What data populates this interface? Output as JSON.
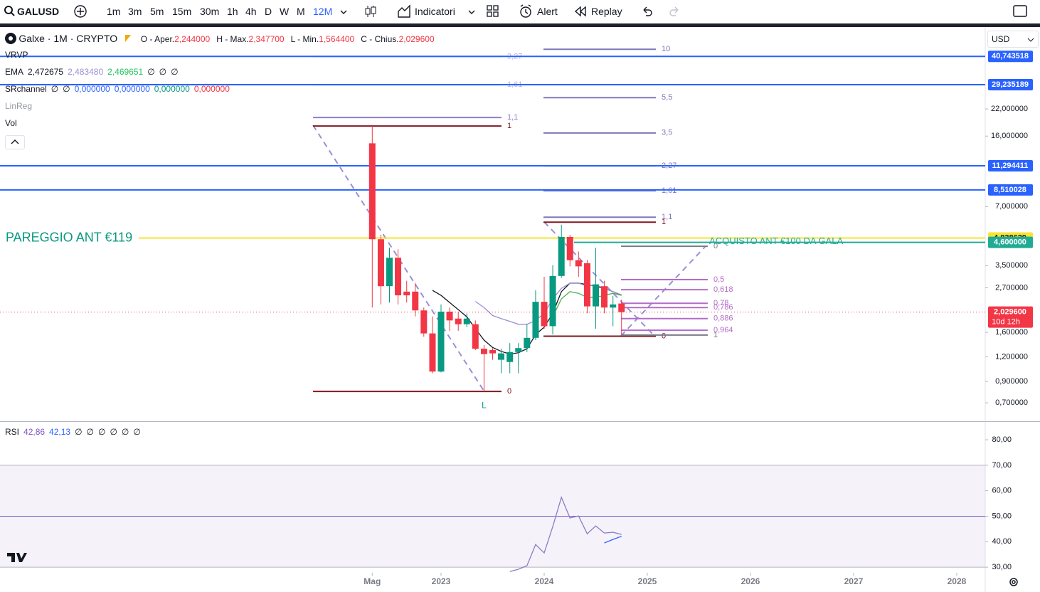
{
  "toolbar": {
    "symbol": "GALUSD",
    "intervals": [
      "1m",
      "3m",
      "5m",
      "15m",
      "30m",
      "1h",
      "4h",
      "D",
      "W",
      "M",
      "12M"
    ],
    "buttons": [
      "Indicatori",
      "Alert",
      "Replay"
    ]
  },
  "legend": {
    "title": "Galxe · 1M · CRYPTO",
    "ohlc": [
      {
        "label": "O - Aper.",
        "value": "2,244000"
      },
      {
        "label": "H - Max.",
        "value": "2,347700"
      },
      {
        "label": "L - Min.",
        "value": "1,564400"
      },
      {
        "label": "C - Chius.",
        "value": "2,029600"
      }
    ]
  },
  "indicators": [
    {
      "name": "VRVP",
      "values": [],
      "colors": []
    },
    {
      "name": "EMA",
      "values": [
        "2,472675",
        "2,483480",
        "2,469651",
        "∅",
        "∅",
        "∅"
      ],
      "colors": [
        "#131722",
        "#9c8fd6",
        "#22c55e",
        "#131722",
        "#131722",
        "#131722"
      ]
    },
    {
      "name": "SRchannel",
      "values": [
        "∅",
        "∅",
        "0,000000",
        "0,000000",
        "0,000000",
        "0,000000"
      ],
      "colors": [
        "#131722",
        "#131722",
        "#2962ff",
        "#2962ff",
        "#089981",
        "#f23645"
      ]
    },
    {
      "name": "LinReg",
      "values": [],
      "colors": []
    },
    {
      "name": "Vol",
      "values": [],
      "colors": []
    }
  ],
  "rsi_legend": {
    "name": "RSI",
    "values": [
      "42,86",
      "42,13",
      "∅",
      "∅",
      "∅",
      "∅",
      "∅",
      "∅"
    ],
    "colors": [
      "#7e57c2",
      "#2962ff",
      "#131722",
      "#131722",
      "#131722",
      "#131722",
      "#131722",
      "#131722"
    ]
  },
  "currency": "USD",
  "chart_data": [
    {
      "type": "candlestick",
      "log_scale": true,
      "grid": false,
      "up_color": "#089981",
      "down_color": "#f23645",
      "x": [
        2022.333,
        2022.417,
        2022.5,
        2022.583,
        2022.667,
        2022.75,
        2022.833,
        2022.917,
        2023,
        2023.083,
        2023.167,
        2023.25,
        2023.333,
        2023.417,
        2023.5,
        2023.583,
        2023.667,
        2023.75,
        2023.833,
        2023.917,
        2024,
        2024.083,
        2024.167,
        2024.25,
        2024.333,
        2024.417,
        2024.5,
        2024.583,
        2024.667,
        2024.75
      ],
      "open": [
        14.7,
        4.77,
        2.75,
        3.84,
        2.58,
        2.58,
        2.07,
        1.58,
        1.01,
        2.04,
        1.88,
        1.76,
        1.76,
        1.32,
        1.3,
        1.16,
        1.13,
        1.27,
        1.33,
        1.5,
        2.29,
        1.72,
        3.1,
        4.9,
        3.73,
        3.6,
        2.17,
        2.75,
        2.14,
        2.244
      ],
      "high": [
        18.0,
        5.02,
        4.32,
        4.24,
        2.93,
        2.86,
        2.14,
        1.93,
        2.22,
        2.14,
        2.04,
        2.0,
        1.84,
        1.38,
        1.33,
        1.32,
        1.41,
        1.41,
        1.76,
        2.62,
        3.07,
        3.52,
        5.66,
        5.02,
        4.13,
        3.74,
        4.32,
        2.93,
        2.46,
        2.3477
      ],
      "low": [
        2.14,
        2.22,
        2.27,
        2.22,
        2.27,
        1.93,
        1.52,
        0.99,
        1.0,
        1.63,
        1.63,
        1.7,
        1.3,
        0.8,
        1.16,
        0.99,
        0.99,
        0.99,
        1.27,
        1.46,
        1.67,
        1.56,
        3.03,
        3.47,
        3.07,
        2.0,
        1.67,
        2.0,
        1.72,
        1.5644
      ],
      "close": [
        4.77,
        2.75,
        3.84,
        2.47,
        2.47,
        2.07,
        1.58,
        1.01,
        2.04,
        1.84,
        1.76,
        1.88,
        1.32,
        1.24,
        1.25,
        1.25,
        1.27,
        1.33,
        1.5,
        2.29,
        1.72,
        3.1,
        4.9,
        3.73,
        3.47,
        2.17,
        2.81,
        2.14,
        2.22,
        2.0296
      ],
      "series": [
        {
          "color": "#131722",
          "values": [
            null,
            null,
            null,
            null,
            null,
            null,
            null,
            2.62,
            2.47,
            2.27,
            2.09,
            1.92,
            1.67,
            1.46,
            1.34,
            1.28,
            1.24,
            1.26,
            1.32,
            1.56,
            1.7,
            2.0,
            2.58,
            2.85,
            2.85,
            2.8,
            2.75,
            2.68,
            2.58,
            2.472675
          ]
        },
        {
          "color": "#9c8fd6",
          "values": [
            null,
            null,
            null,
            null,
            null,
            null,
            null,
            null,
            null,
            null,
            null,
            null,
            2.3,
            2.14,
            1.95,
            1.88,
            1.82,
            1.76,
            1.76,
            1.84,
            2.0,
            2.37,
            2.68,
            2.85,
            2.85,
            2.75,
            2.8,
            2.68,
            2.58,
            2.48348
          ]
        },
        {
          "color": "#4caf50",
          "values": [
            null,
            null,
            null,
            null,
            null,
            null,
            null,
            null,
            null,
            null,
            null,
            null,
            null,
            null,
            null,
            null,
            null,
            null,
            null,
            null,
            null,
            1.92,
            2.37,
            2.58,
            2.53,
            2.41,
            2.41,
            2.47,
            2.53,
            2.469651
          ]
        }
      ],
      "xlim": [
        2018.724,
        2028.276
      ],
      "ylim": [
        0.564,
        57.5
      ],
      "xticks": [
        {
          "value": 2022.333,
          "label": "Mag"
        },
        2023,
        2024,
        2025,
        2026,
        2027,
        2028
      ],
      "yticks": [
        {
          "value": 22,
          "label": "22,000000"
        },
        {
          "value": 16,
          "label": "16,000000"
        },
        {
          "value": 7,
          "label": "7,000000"
        },
        {
          "value": 3.5,
          "label": "3,500000"
        },
        {
          "value": 2.7,
          "label": "2,700000"
        },
        {
          "value": 1.6,
          "label": "1,600000"
        },
        {
          "value": 1.2,
          "label": "1,200000"
        },
        {
          "value": 0.9,
          "label": "0,900000"
        },
        {
          "value": 0.7,
          "label": "0,700000"
        }
      ],
      "hlines": [
        {
          "value": 40.743518,
          "label": "40,743518",
          "color": "#2962ff"
        },
        {
          "value": 29.235189,
          "label": "29,235189",
          "color": "#2962ff"
        },
        {
          "value": 11.294411,
          "label": "11,294411",
          "color": "#2962ff"
        },
        {
          "value": 8.510028,
          "label": "8,510028",
          "color": "#2962ff"
        },
        {
          "value": 4.838629,
          "label": "4,838629",
          "color": "#f5e431",
          "text": "PAREGGIO ANT €119",
          "text_side": "left"
        },
        {
          "value": 4.6,
          "label": "4,600000",
          "color": "#22ab94",
          "text": "ACQUISTO ANT €100  DA GALA",
          "from": 2024.29
        }
      ],
      "last_price": {
        "value": 2.0296,
        "label": "2,029600",
        "countdown": "10d 12h",
        "color": "#f23645"
      },
      "fibs": [
        {
          "x_from": 2021.759,
          "x_to": 2023.586,
          "levels": [
            {
              "value": 40.7,
              "label": "2,27",
              "color": "#b8b4dc"
            },
            {
              "value": 29.2,
              "label": "1,61",
              "color": "#b8b4dc"
            },
            {
              "value": 19.9,
              "label": "1,1",
              "color": "#8a80c8"
            },
            {
              "value": 18.0,
              "label": "1",
              "color": "#801922"
            },
            {
              "value": 0.8,
              "label": "0",
              "color": "#801922"
            }
          ]
        },
        {
          "x_from": 2023.993,
          "x_to": 2025.083,
          "levels": [
            {
              "value": 44.3,
              "label": "10",
              "color": "#7e78b8"
            },
            {
              "value": 25.1,
              "label": "5,5",
              "color": "#7e78b8"
            },
            {
              "value": 16.6,
              "label": "3,5",
              "color": "#7e78b8"
            },
            {
              "value": 11.28,
              "label": "2,27",
              "color": "#7e78b8"
            },
            {
              "value": 8.42,
              "label": "1,61",
              "color": "#7e78b8"
            },
            {
              "value": 6.18,
              "label": "1,1",
              "color": "#7e78b8"
            },
            {
              "value": 5.83,
              "label": "1",
              "color": "#801922"
            },
            {
              "value": 1.53,
              "label": "0",
              "color": "#801922"
            }
          ]
        },
        {
          "x_from": 2024.745,
          "x_to": 2025.586,
          "levels": [
            {
              "value": 4.39,
              "label": "0",
              "color": "#787b86"
            },
            {
              "value": 2.97,
              "label": "0,5",
              "color": "#b26cc9"
            },
            {
              "value": 2.64,
              "label": "0,618",
              "color": "#b26cc9"
            },
            {
              "value": 2.25,
              "label": "0,78",
              "color": "#b26cc9"
            },
            {
              "value": 2.14,
              "label": "0,786",
              "color": "#b26cc9"
            },
            {
              "value": 1.88,
              "label": "0,886",
              "color": "#b26cc9"
            },
            {
              "value": 1.64,
              "label": "0,964",
              "color": "#b26cc9"
            },
            {
              "value": 1.55,
              "label": "1",
              "color": "#787b86"
            }
          ]
        }
      ],
      "annotations": [
        {
          "text": "L",
          "x": 2023.417,
          "y": 0.8,
          "color": "#089981"
        }
      ]
    },
    {
      "type": "line",
      "grid": false,
      "band": [
        30,
        70
      ],
      "midline": 50,
      "band_color": "#7e57c2",
      "x": [
        2023.667,
        2023.75,
        2023.833,
        2023.917,
        2024,
        2024.083,
        2024.167,
        2024.25,
        2024.333,
        2024.417,
        2024.5,
        2024.583,
        2024.667,
        2024.75
      ],
      "series": [
        {
          "color": "#8e7cc3",
          "values": [
            28.3,
            29.2,
            30.6,
            38.9,
            35.6,
            45.9,
            57.4,
            49.3,
            50.1,
            43.1,
            46.2,
            43.4,
            43.7,
            42.86
          ]
        },
        {
          "color": "#2962ff",
          "values": [
            null,
            null,
            null,
            null,
            null,
            null,
            null,
            null,
            null,
            null,
            null,
            39.5,
            40.9,
            42.13
          ]
        }
      ],
      "xlim": [
        2018.724,
        2028.276
      ],
      "ylim": [
        27.8,
        87
      ],
      "yticks": [
        {
          "value": 80,
          "label": "80,00"
        },
        {
          "value": 70,
          "label": "70,00"
        },
        {
          "value": 60,
          "label": "60,00"
        },
        {
          "value": 50,
          "label": "50,00"
        },
        {
          "value": 40,
          "label": "40,00"
        },
        {
          "value": 30,
          "label": "30,00"
        }
      ]
    }
  ]
}
